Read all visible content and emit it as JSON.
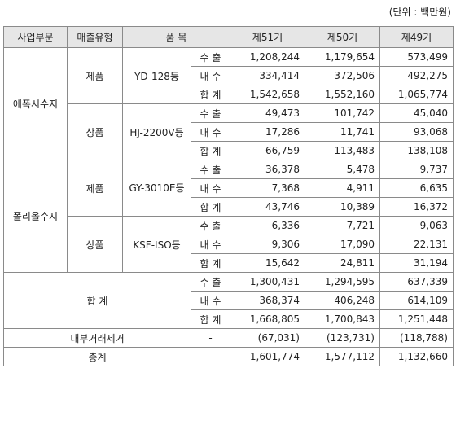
{
  "unit_label": "(단위 : 백만원)",
  "headers": [
    "사업부문",
    "매출유형",
    "품 목",
    "제51기",
    "제50기",
    "제49기"
  ],
  "segments": [
    {
      "name": "에폭시수지",
      "groups": [
        {
          "type": "제품",
          "item": "YD-128등",
          "rows": [
            {
              "label": "수 출",
              "v": [
                "1,208,244",
                "1,179,654",
                "573,499"
              ]
            },
            {
              "label": "내 수",
              "v": [
                "334,414",
                "372,506",
                "492,275"
              ]
            },
            {
              "label": "합 계",
              "v": [
                "1,542,658",
                "1,552,160",
                "1,065,774"
              ]
            }
          ]
        },
        {
          "type": "상품",
          "item": "HJ-2200V등",
          "rows": [
            {
              "label": "수 출",
              "v": [
                "49,473",
                "101,742",
                "45,040"
              ]
            },
            {
              "label": "내 수",
              "v": [
                "17,286",
                "11,741",
                "93,068"
              ]
            },
            {
              "label": "합 계",
              "v": [
                "66,759",
                "113,483",
                "138,108"
              ]
            }
          ]
        }
      ]
    },
    {
      "name": "폴리올수지",
      "groups": [
        {
          "type": "제품",
          "item": "GY-3010E등",
          "rows": [
            {
              "label": "수 출",
              "v": [
                "36,378",
                "5,478",
                "9,737"
              ]
            },
            {
              "label": "내 수",
              "v": [
                "7,368",
                "4,911",
                "6,635"
              ]
            },
            {
              "label": "합 계",
              "v": [
                "43,746",
                "10,389",
                "16,372"
              ]
            }
          ]
        },
        {
          "type": "상품",
          "item": "KSF-ISO등",
          "rows": [
            {
              "label": "수 출",
              "v": [
                "6,336",
                "7,721",
                "9,063"
              ]
            },
            {
              "label": "내 수",
              "v": [
                "9,306",
                "17,090",
                "22,131"
              ]
            },
            {
              "label": "합 계",
              "v": [
                "15,642",
                "24,811",
                "31,194"
              ]
            }
          ]
        }
      ]
    }
  ],
  "total": {
    "label": "합 계",
    "rows": [
      {
        "label": "수 출",
        "v": [
          "1,300,431",
          "1,294,595",
          "637,339"
        ]
      },
      {
        "label": "내 수",
        "v": [
          "368,374",
          "406,248",
          "614,109"
        ]
      },
      {
        "label": "합 계",
        "v": [
          "1,668,805",
          "1,700,843",
          "1,251,448"
        ]
      }
    ]
  },
  "elimination": {
    "label": "내부거래제거",
    "dash": "-",
    "v": [
      "(67,031)",
      "(123,731)",
      "(118,788)"
    ]
  },
  "grand_total": {
    "label": "총계",
    "dash": "-",
    "v": [
      "1,601,774",
      "1,577,112",
      "1,132,660"
    ]
  }
}
